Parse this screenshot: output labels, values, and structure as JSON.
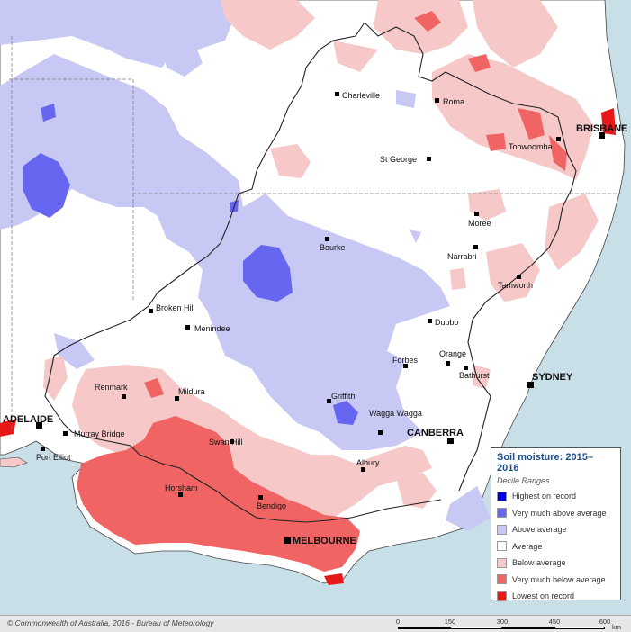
{
  "legend": {
    "title": "Soil moisture: 2015–2016",
    "subtitle": "Decile Ranges",
    "items": [
      {
        "label": "Highest on record",
        "color": "#0000e6"
      },
      {
        "label": "Very much above average",
        "color": "#6666f0"
      },
      {
        "label": "Above average",
        "color": "#c8c8f4"
      },
      {
        "label": "Average",
        "color": "#ffffff"
      },
      {
        "label": "Below average",
        "color": "#f6c8c8"
      },
      {
        "label": "Very much below average",
        "color": "#f06464"
      },
      {
        "label": "Lowest on record",
        "color": "#e81818"
      }
    ]
  },
  "map": {
    "ocean_color": "#c8dfe8",
    "capitals": [
      "ADELAIDE",
      "BRISBANE",
      "SYDNEY",
      "CANBERRA",
      "MELBOURNE"
    ],
    "towns": [
      "Charleville",
      "Roma",
      "Toowoomba",
      "St George",
      "Moree",
      "Narrabri",
      "Bourke",
      "Tamworth",
      "Broken Hill",
      "Menindee",
      "Dubbo",
      "Orange",
      "Forbes",
      "Bathurst",
      "Renmark",
      "Mildura",
      "Griffith",
      "Wagga Wagga",
      "Murray Bridge",
      "Port Elliot",
      "Swan Hill",
      "Albury",
      "Horsham",
      "Bendigo"
    ]
  },
  "footer": {
    "copyright": "© Commonwealth of Australia, 2016 - Bureau of Meteorology",
    "scale_ticks": [
      "0",
      "150",
      "300",
      "450",
      "600"
    ],
    "scale_unit": "km"
  }
}
